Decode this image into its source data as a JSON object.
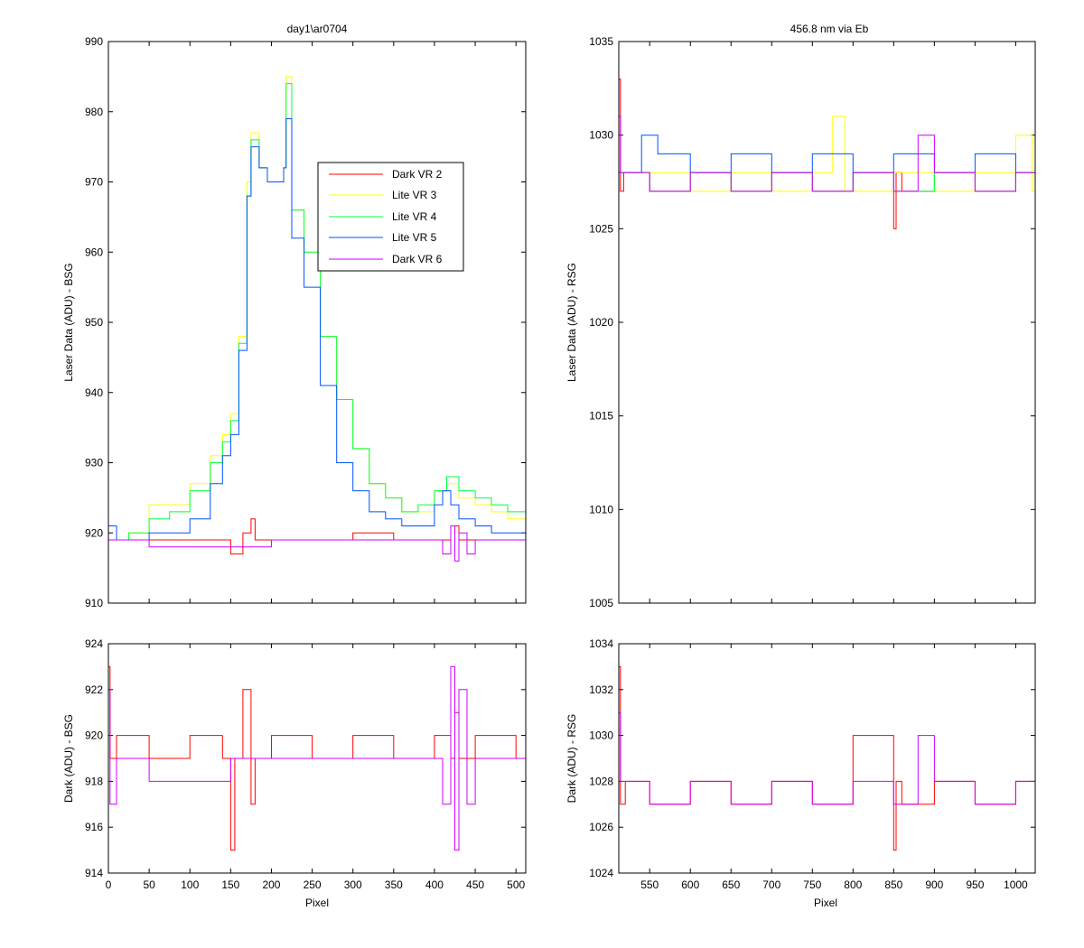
{
  "chart_data": [
    {
      "id": "top_left",
      "type": "line",
      "title": "day1\\ar0704",
      "xlabel": "",
      "ylabel": "Laser Data (ADU) - BSG",
      "xlim": [
        0,
        512
      ],
      "ylim": [
        910,
        990
      ],
      "xticks": [
        0,
        50,
        100,
        150,
        200,
        250,
        300,
        350,
        400,
        450,
        500
      ],
      "xtick_labels_visible": false,
      "yticks": [
        910,
        920,
        930,
        940,
        950,
        960,
        970,
        980,
        990
      ],
      "legend": "inside-upper-right",
      "series": [
        {
          "name": "Dark VR 2",
          "color": "#ff0000",
          "x": [
            0,
            50,
            100,
            140,
            150,
            165,
            175,
            180,
            200,
            250,
            300,
            350,
            400,
            410,
            420,
            430,
            450,
            500,
            512
          ],
          "y": [
            919,
            919,
            919,
            919,
            917,
            920,
            922,
            919,
            919,
            919,
            920,
            919,
            919,
            919,
            921,
            919,
            919,
            919,
            919
          ]
        },
        {
          "name": "Lite VR 3",
          "color": "#ffff00",
          "x": [
            0,
            10,
            25,
            50,
            75,
            100,
            125,
            140,
            150,
            160,
            170,
            175,
            185,
            195,
            205,
            215,
            218,
            225,
            240,
            260,
            280,
            300,
            320,
            340,
            360,
            380,
            400,
            415,
            430,
            450,
            470,
            490,
            512
          ],
          "y": [
            921,
            919,
            920,
            924,
            924,
            927,
            931,
            934,
            937,
            948,
            970,
            977,
            972,
            970,
            970,
            972,
            985,
            966,
            960,
            948,
            939,
            932,
            927,
            925,
            923,
            923,
            926,
            927,
            925,
            924,
            923,
            922,
            918
          ]
        },
        {
          "name": "Lite VR 4",
          "color": "#00ff40",
          "x": [
            0,
            10,
            25,
            50,
            75,
            100,
            125,
            140,
            150,
            160,
            170,
            175,
            185,
            195,
            205,
            215,
            218,
            225,
            240,
            260,
            280,
            300,
            320,
            340,
            360,
            380,
            400,
            415,
            430,
            450,
            470,
            490,
            512
          ],
          "y": [
            921,
            919,
            920,
            922,
            923,
            926,
            930,
            933,
            936,
            947,
            968,
            976,
            972,
            970,
            970,
            972,
            984,
            966,
            960,
            948,
            939,
            932,
            927,
            925,
            923,
            924,
            926,
            928,
            926,
            925,
            924,
            923,
            918
          ]
        },
        {
          "name": "Lite VR 5",
          "color": "#0050ff",
          "x": [
            0,
            10,
            25,
            50,
            75,
            100,
            125,
            140,
            150,
            160,
            170,
            175,
            185,
            195,
            205,
            215,
            218,
            225,
            240,
            260,
            280,
            300,
            320,
            340,
            360,
            380,
            400,
            410,
            420,
            430,
            450,
            470,
            490,
            512
          ],
          "y": [
            921,
            919,
            919,
            920,
            920,
            922,
            927,
            931,
            934,
            946,
            968,
            975,
            972,
            970,
            970,
            972,
            979,
            962,
            955,
            941,
            930,
            926,
            923,
            922,
            921,
            921,
            924,
            926,
            924,
            922,
            921,
            920,
            920,
            918
          ]
        },
        {
          "name": "Dark VR 6",
          "color": "#d000ff",
          "x": [
            0,
            50,
            100,
            150,
            200,
            250,
            300,
            350,
            400,
            410,
            420,
            425,
            430,
            440,
            450,
            500,
            512
          ],
          "y": [
            919,
            918,
            918,
            918,
            919,
            919,
            919,
            919,
            919,
            917,
            921,
            916,
            920,
            917,
            919,
            919,
            919
          ]
        }
      ]
    },
    {
      "id": "top_right",
      "type": "line",
      "title": "456.8 nm via Eb",
      "xlabel": "",
      "ylabel": "Laser Data (ADU) - RSG",
      "xlim": [
        512,
        1024
      ],
      "ylim": [
        1005,
        1035
      ],
      "xticks": [
        550,
        600,
        650,
        700,
        750,
        800,
        850,
        900,
        950,
        1000
      ],
      "xtick_labels_visible": false,
      "yticks": [
        1005,
        1010,
        1015,
        1020,
        1025,
        1030,
        1035
      ],
      "series": [
        {
          "name": "Dark VR 2",
          "color": "#ff0000",
          "x": [
            512,
            514,
            518,
            550,
            600,
            650,
            700,
            750,
            800,
            850,
            853,
            860,
            900,
            950,
            1000,
            1024
          ],
          "y": [
            1033,
            1027,
            1028,
            1027,
            1028,
            1027,
            1028,
            1027,
            1028,
            1025,
            1028,
            1027,
            1028,
            1027,
            1028,
            1030
          ]
        },
        {
          "name": "Lite VR 3",
          "color": "#ffff00",
          "x": [
            512,
            550,
            600,
            650,
            700,
            750,
            775,
            790,
            850,
            900,
            950,
            1000,
            1020,
            1024
          ],
          "y": [
            1028,
            1028,
            1027,
            1028,
            1027,
            1028,
            1031,
            1027,
            1028,
            1027,
            1028,
            1030,
            1027,
            1028
          ]
        },
        {
          "name": "Lite VR 4",
          "color": "#00ff40",
          "x": [
            512,
            550,
            600,
            650,
            700,
            750,
            800,
            850,
            900,
            950,
            1000,
            1024
          ],
          "y": [
            1028,
            1027,
            1028,
            1027,
            1028,
            1027,
            1028,
            1027,
            1028,
            1027,
            1028,
            1027
          ]
        },
        {
          "name": "Lite VR 5",
          "color": "#0050ff",
          "x": [
            512,
            540,
            560,
            600,
            650,
            700,
            750,
            800,
            850,
            900,
            950,
            1000,
            1024
          ],
          "y": [
            1028,
            1030,
            1029,
            1028,
            1029,
            1028,
            1029,
            1028,
            1029,
            1028,
            1029,
            1028,
            1028
          ]
        },
        {
          "name": "Dark VR 6",
          "color": "#d000ff",
          "x": [
            512,
            514,
            550,
            600,
            650,
            700,
            750,
            800,
            850,
            880,
            900,
            950,
            1000,
            1024
          ],
          "y": [
            1031,
            1028,
            1027,
            1028,
            1027,
            1028,
            1027,
            1028,
            1027,
            1030,
            1028,
            1027,
            1028,
            1029
          ]
        }
      ]
    },
    {
      "id": "bottom_left",
      "type": "line",
      "title": "",
      "xlabel": "Pixel",
      "ylabel": "Dark (ADU) - BSG",
      "xlim": [
        0,
        512
      ],
      "ylim": [
        914,
        924
      ],
      "xticks": [
        0,
        50,
        100,
        150,
        200,
        250,
        300,
        350,
        400,
        450,
        500
      ],
      "xtick_labels_visible": true,
      "yticks": [
        914,
        916,
        918,
        920,
        922,
        924
      ],
      "series": [
        {
          "name": "Dark VR 2",
          "color": "#ff0000",
          "x": [
            0,
            2,
            10,
            50,
            100,
            140,
            150,
            155,
            165,
            175,
            180,
            200,
            250,
            300,
            350,
            400,
            420,
            425,
            430,
            450,
            500,
            512
          ],
          "y": [
            923,
            919,
            920,
            919,
            920,
            919,
            915,
            919,
            922,
            917,
            919,
            920,
            919,
            920,
            919,
            920,
            919,
            921,
            919,
            920,
            919,
            920
          ]
        },
        {
          "name": "Dark VR 6",
          "color": "#d000ff",
          "x": [
            0,
            2,
            10,
            50,
            100,
            150,
            200,
            250,
            300,
            350,
            400,
            410,
            420,
            425,
            430,
            440,
            450,
            500,
            512
          ],
          "y": [
            922,
            917,
            919,
            918,
            918,
            919,
            919,
            919,
            919,
            919,
            919,
            917,
            923,
            915,
            922,
            917,
            919,
            919,
            919
          ]
        }
      ]
    },
    {
      "id": "bottom_right",
      "type": "line",
      "title": "",
      "xlabel": "Pixel",
      "ylabel": "Dark (ADU) - RSG",
      "xlim": [
        512,
        1024
      ],
      "ylim": [
        1024,
        1034
      ],
      "xticks": [
        550,
        600,
        650,
        700,
        750,
        800,
        850,
        900,
        950,
        1000
      ],
      "xtick_labels_visible": true,
      "yticks": [
        1024,
        1026,
        1028,
        1030,
        1032,
        1034
      ],
      "series": [
        {
          "name": "Dark VR 2",
          "color": "#ff0000",
          "x": [
            512,
            514,
            520,
            550,
            600,
            650,
            700,
            750,
            800,
            850,
            853,
            860,
            900,
            950,
            1000,
            1024
          ],
          "y": [
            1033,
            1027,
            1028,
            1027,
            1028,
            1027,
            1028,
            1027,
            1030,
            1025,
            1028,
            1027,
            1028,
            1027,
            1028,
            1030
          ]
        },
        {
          "name": "Dark VR 6",
          "color": "#d000ff",
          "x": [
            512,
            514,
            550,
            600,
            650,
            700,
            750,
            800,
            850,
            880,
            900,
            950,
            1000,
            1024
          ],
          "y": [
            1031,
            1028,
            1027,
            1028,
            1027,
            1028,
            1027,
            1028,
            1027,
            1030,
            1028,
            1027,
            1028,
            1029
          ]
        }
      ]
    }
  ]
}
